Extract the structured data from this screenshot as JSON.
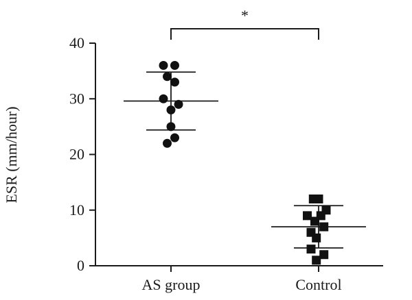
{
  "chart_data": {
    "type": "scatter",
    "ylabel": "ESR (mm/hour)",
    "ylim": [
      0,
      40
    ],
    "yticks": [
      0,
      10,
      20,
      30,
      40
    ],
    "categories": [
      "AS group",
      "Control"
    ],
    "series": [
      {
        "category": "AS group",
        "marker": "circle",
        "points": [
          {
            "offset": -1.0,
            "y": 36
          },
          {
            "offset": 0.5,
            "y": 36
          },
          {
            "offset": -0.5,
            "y": 34
          },
          {
            "offset": 0.5,
            "y": 33
          },
          {
            "offset": -1.0,
            "y": 30
          },
          {
            "offset": 0.0,
            "y": 28
          },
          {
            "offset": 1.0,
            "y": 29
          },
          {
            "offset": 0.0,
            "y": 25
          },
          {
            "offset": 0.5,
            "y": 23
          },
          {
            "offset": -0.5,
            "y": 22
          }
        ],
        "mean": 29.6,
        "sd": 5.2
      },
      {
        "category": "Control",
        "marker": "square",
        "points": [
          {
            "offset": -0.7,
            "y": 12
          },
          {
            "offset": 0.0,
            "y": 12
          },
          {
            "offset": 1.0,
            "y": 10
          },
          {
            "offset": -1.5,
            "y": 9
          },
          {
            "offset": 0.3,
            "y": 9
          },
          {
            "offset": -0.5,
            "y": 8
          },
          {
            "offset": 0.7,
            "y": 7
          },
          {
            "offset": -1.0,
            "y": 6
          },
          {
            "offset": -0.3,
            "y": 5
          },
          {
            "offset": -1.0,
            "y": 3
          },
          {
            "offset": 0.7,
            "y": 2
          },
          {
            "offset": -0.3,
            "y": 1
          }
        ],
        "mean": 7.0,
        "sd": 3.8
      }
    ],
    "significance": {
      "between": [
        "AS group",
        "Control"
      ],
      "label": "*"
    }
  }
}
